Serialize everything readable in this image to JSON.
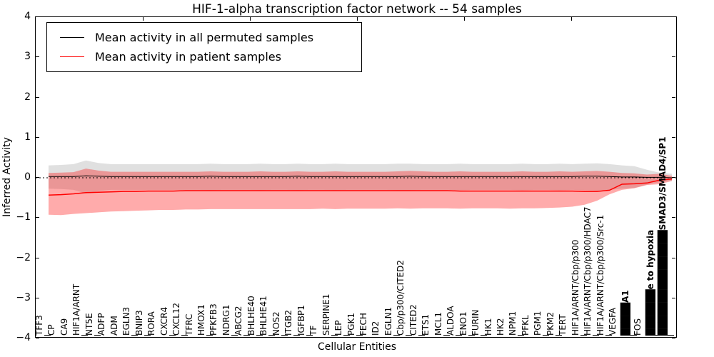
{
  "title": "HIF-1-alpha transcription factor network -- 54 samples",
  "axes": {
    "xlabel": "Cellular Entities",
    "ylabel": "Inferred Activity"
  },
  "legend": {
    "position": "upper left",
    "items": [
      {
        "label": "Mean activity in all permuted samples",
        "color": "#000000"
      },
      {
        "label": "Mean activity in patient samples",
        "color": "#ff0000"
      }
    ]
  },
  "chart_data": {
    "type": "line",
    "title": "HIF-1-alpha transcription factor network -- 54 samples",
    "xlabel": "Cellular Entities",
    "ylabel": "Inferred Activity",
    "ylim": [
      -4,
      4
    ],
    "grid": false,
    "zero_line": "dashed",
    "legend_position": "upper left",
    "yticks": [
      {
        "v": 4,
        "label": "4"
      },
      {
        "v": 3,
        "label": "3"
      },
      {
        "v": 2,
        "label": "2"
      },
      {
        "v": 1,
        "label": "1"
      },
      {
        "v": 0,
        "label": "0"
      },
      {
        "v": -1,
        "label": "−1"
      },
      {
        "v": -2,
        "label": "−2"
      },
      {
        "v": -3,
        "label": "−3"
      },
      {
        "v": -4,
        "label": "−4"
      }
    ],
    "top_tick_x": [
      200,
      350,
      500,
      650,
      800
    ],
    "categories": [
      {
        "label": "TFF3",
        "u": true
      },
      {
        "label": "CP",
        "u": false
      },
      {
        "label": "CA9",
        "u": false
      },
      {
        "label": "HIF1A/ARNT",
        "u": true
      },
      {
        "label": "NT5E",
        "u": true
      },
      {
        "label": "ADFP",
        "u": false
      },
      {
        "label": "ADM",
        "u": false
      },
      {
        "label": "EGLN3",
        "u": true
      },
      {
        "label": "BNIP3",
        "u": true
      },
      {
        "label": "RORA",
        "u": false
      },
      {
        "label": "CXCR4",
        "u": true
      },
      {
        "label": "CXCL12",
        "u": true
      },
      {
        "label": "TFRC",
        "u": false
      },
      {
        "label": "HMOX1",
        "u": true
      },
      {
        "label": "PFKFB3",
        "u": false
      },
      {
        "label": "NDRG1",
        "u": true
      },
      {
        "label": "ABCG2",
        "u": true
      },
      {
        "label": "BHLHE40",
        "u": true
      },
      {
        "label": "BHLHE41",
        "u": true
      },
      {
        "label": "NOS2",
        "u": true
      },
      {
        "label": "ITGB2",
        "u": true
      },
      {
        "label": "IGFBP1",
        "u": true
      },
      {
        "label": "TF",
        "u": false
      },
      {
        "label": "SERPINE1",
        "u": true
      },
      {
        "label": "LEP",
        "u": true
      },
      {
        "label": "PGK1",
        "u": true
      },
      {
        "label": "FECH",
        "u": false
      },
      {
        "label": "ID2",
        "u": false
      },
      {
        "label": "EGLN1",
        "u": true
      },
      {
        "label": "Cbp/p300/CITED2",
        "u": true
      },
      {
        "label": "CITED2",
        "u": true
      },
      {
        "label": "ETS1",
        "u": false
      },
      {
        "label": "MCL1",
        "u": true
      },
      {
        "label": "ALDOA",
        "u": true
      },
      {
        "label": "ENO1",
        "u": true
      },
      {
        "label": "FURIN",
        "u": true
      },
      {
        "label": "HK1",
        "u": false
      },
      {
        "label": "HK2",
        "u": false
      },
      {
        "label": "NPM1",
        "u": true
      },
      {
        "label": "PFKL",
        "u": false
      },
      {
        "label": "PGM1",
        "u": true
      },
      {
        "label": "PKM2",
        "u": true
      },
      {
        "label": "TERT",
        "u": false
      },
      {
        "label": "HIF1A/ARNT/Cbp/p300",
        "u": true
      },
      {
        "label": "HIF1A/ARNT/Cbp/p300/HDAC7",
        "u": true
      },
      {
        "label": "HIF1A/ARNT/Cbp/p300/Src-1",
        "u": true
      },
      {
        "label": "VEGFA",
        "u": false
      },
      {
        "label": "█████A1",
        "u": true,
        "b": true
      },
      {
        "label": "FOS",
        "u": false
      },
      {
        "label": "███████e to hypoxia",
        "u": true,
        "b": true
      },
      {
        "label": "████████████████SMAD3/SMAD4/SP1",
        "u": true,
        "b": true
      }
    ],
    "series": [
      {
        "name": "Mean activity in all permuted samples",
        "color": "#000000",
        "line_width": 1,
        "values": [
          0.03,
          0.03,
          0.03,
          0.05,
          0.04,
          0.03,
          0.03,
          0.03,
          0.03,
          0.03,
          0.03,
          0.03,
          0.03,
          0.04,
          0.03,
          0.03,
          0.03,
          0.03,
          0.03,
          0.03,
          0.04,
          0.03,
          0.03,
          0.03,
          0.03,
          0.03,
          0.03,
          0.03,
          0.03,
          0.04,
          0.03,
          0.03,
          0.03,
          0.03,
          0.03,
          0.03,
          0.03,
          0.03,
          0.03,
          0.03,
          0.03,
          0.03,
          0.03,
          0.04,
          0.04,
          0.03,
          0.02,
          0.02,
          0.01,
          0.01,
          0.0
        ],
        "band": {
          "color": "rgba(0,0,0,0.12)",
          "top": [
            0.31,
            0.32,
            0.34,
            0.43,
            0.37,
            0.34,
            0.34,
            0.34,
            0.34,
            0.34,
            0.34,
            0.34,
            0.34,
            0.35,
            0.34,
            0.34,
            0.34,
            0.35,
            0.34,
            0.34,
            0.35,
            0.34,
            0.34,
            0.35,
            0.34,
            0.34,
            0.34,
            0.34,
            0.35,
            0.35,
            0.34,
            0.34,
            0.34,
            0.35,
            0.34,
            0.34,
            0.34,
            0.34,
            0.35,
            0.34,
            0.34,
            0.35,
            0.34,
            0.35,
            0.36,
            0.34,
            0.31,
            0.29,
            0.2,
            0.13,
            0.1
          ],
          "bottom": [
            -0.27,
            -0.28,
            -0.3,
            -0.39,
            -0.33,
            -0.3,
            -0.3,
            -0.3,
            -0.3,
            -0.3,
            -0.3,
            -0.3,
            -0.3,
            -0.31,
            -0.3,
            -0.3,
            -0.3,
            -0.31,
            -0.3,
            -0.3,
            -0.31,
            -0.3,
            -0.3,
            -0.31,
            -0.3,
            -0.3,
            -0.3,
            -0.3,
            -0.31,
            -0.31,
            -0.3,
            -0.3,
            -0.3,
            -0.31,
            -0.3,
            -0.3,
            -0.3,
            -0.3,
            -0.31,
            -0.3,
            -0.3,
            -0.31,
            -0.3,
            -0.31,
            -0.32,
            -0.3,
            -0.27,
            -0.25,
            -0.17,
            -0.11,
            -0.08
          ]
        }
      },
      {
        "name": "Mean activity in patient samples",
        "color": "#ff0000",
        "line_width": 1.5,
        "values": [
          -0.43,
          -0.42,
          -0.4,
          -0.37,
          -0.36,
          -0.35,
          -0.34,
          -0.34,
          -0.33,
          -0.33,
          -0.33,
          -0.32,
          -0.32,
          -0.32,
          -0.32,
          -0.32,
          -0.32,
          -0.32,
          -0.32,
          -0.32,
          -0.32,
          -0.32,
          -0.32,
          -0.32,
          -0.32,
          -0.32,
          -0.32,
          -0.32,
          -0.32,
          -0.32,
          -0.32,
          -0.32,
          -0.32,
          -0.33,
          -0.33,
          -0.33,
          -0.33,
          -0.33,
          -0.33,
          -0.33,
          -0.33,
          -0.33,
          -0.33,
          -0.34,
          -0.34,
          -0.31,
          -0.16,
          -0.15,
          -0.13,
          -0.06,
          -0.03
        ],
        "band": {
          "color": "rgba(255,0,0,0.33)",
          "top": [
            0.12,
            0.13,
            0.14,
            0.23,
            0.18,
            0.15,
            0.15,
            0.15,
            0.15,
            0.15,
            0.15,
            0.15,
            0.15,
            0.16,
            0.15,
            0.15,
            0.15,
            0.16,
            0.15,
            0.15,
            0.16,
            0.15,
            0.15,
            0.16,
            0.15,
            0.15,
            0.15,
            0.15,
            0.16,
            0.17,
            0.16,
            0.15,
            0.15,
            0.16,
            0.15,
            0.15,
            0.15,
            0.15,
            0.16,
            0.15,
            0.15,
            0.16,
            0.15,
            0.16,
            0.17,
            0.15,
            0.12,
            0.11,
            0.08,
            0.1,
            0.05
          ],
          "bottom": [
            -0.92,
            -0.93,
            -0.9,
            -0.88,
            -0.86,
            -0.84,
            -0.83,
            -0.82,
            -0.81,
            -0.8,
            -0.8,
            -0.79,
            -0.79,
            -0.78,
            -0.78,
            -0.78,
            -0.78,
            -0.78,
            -0.78,
            -0.78,
            -0.78,
            -0.78,
            -0.77,
            -0.78,
            -0.77,
            -0.77,
            -0.77,
            -0.77,
            -0.76,
            -0.77,
            -0.76,
            -0.76,
            -0.76,
            -0.77,
            -0.76,
            -0.76,
            -0.76,
            -0.77,
            -0.76,
            -0.76,
            -0.75,
            -0.74,
            -0.72,
            -0.67,
            -0.57,
            -0.41,
            -0.3,
            -0.26,
            -0.18,
            -0.16,
            -0.08
          ]
        }
      }
    ]
  }
}
